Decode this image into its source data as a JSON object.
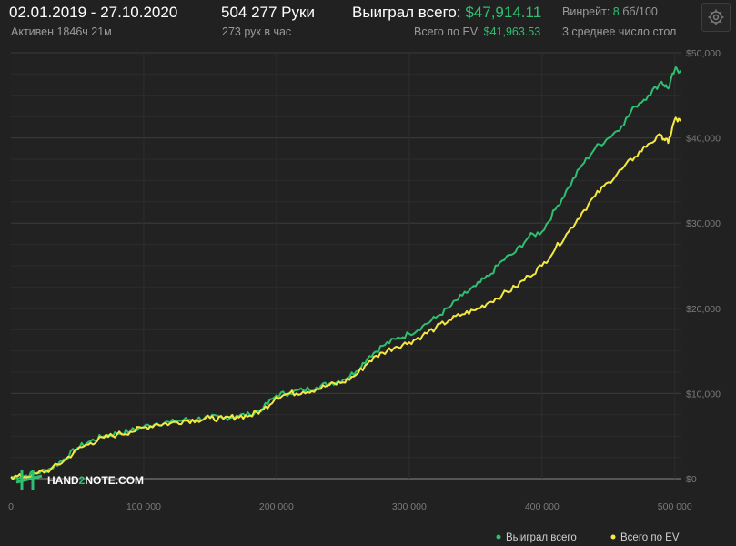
{
  "header": {
    "date_range": "02.01.2019 - 27.10.2020",
    "active_time": "Активен 1846ч 21м",
    "hands": "504 277 Руки",
    "hands_per_hour": "273 рук в час",
    "won_total_label": "Выиграл всего:",
    "won_total_value": "$47,914.11",
    "ev_total_label": "Всего по EV:",
    "ev_total_value": "$41,963.53",
    "winrate_label": "Винрейт:",
    "winrate_value": "8",
    "winrate_unit": "бб/100",
    "avg_tables": "3 среднее число стол"
  },
  "logo": {
    "text_a": "HAND",
    "text_2": "2",
    "text_b": "NOTE.COM"
  },
  "colors": {
    "won": "#2fbf71",
    "ev": "#f4e842",
    "background": "#212121",
    "grid": "#3a3a3a"
  },
  "icons": {
    "settings": "gear-icon"
  },
  "chart_data": {
    "type": "line",
    "title": "",
    "xlabel": "",
    "ylabel": "",
    "xlim": [
      0,
      504277
    ],
    "ylim": [
      0,
      50000
    ],
    "x_ticks": [
      0,
      100000,
      200000,
      300000,
      400000,
      500000
    ],
    "x_tick_labels": [
      "0",
      "100 000",
      "200 000",
      "300 000",
      "400 000",
      "500 000"
    ],
    "y_ticks": [
      0,
      10000,
      20000,
      30000,
      40000,
      50000
    ],
    "y_tick_labels": [
      "$0",
      "$10,000",
      "$20,000",
      "$30,000",
      "$40,000",
      "$50,000"
    ],
    "grid": true,
    "legend_position": "bottom-right",
    "series": [
      {
        "name": "Выиграл всего",
        "color": "#2fbf71",
        "x": [
          0,
          10000,
          20000,
          30000,
          40000,
          50000,
          60000,
          70000,
          80000,
          90000,
          100000,
          110000,
          120000,
          130000,
          140000,
          150000,
          160000,
          170000,
          180000,
          190000,
          200000,
          210000,
          220000,
          230000,
          240000,
          250000,
          260000,
          270000,
          280000,
          290000,
          300000,
          310000,
          320000,
          330000,
          340000,
          350000,
          360000,
          370000,
          380000,
          390000,
          400000,
          410000,
          420000,
          430000,
          440000,
          450000,
          460000,
          470000,
          480000,
          490000,
          495000,
          500000,
          504277
        ],
        "y": [
          200,
          300,
          700,
          1200,
          2300,
          3600,
          4400,
          5000,
          5300,
          5600,
          6100,
          6500,
          6600,
          6900,
          7000,
          7200,
          7100,
          7400,
          7500,
          8300,
          9800,
          10100,
          10400,
          10700,
          11200,
          11600,
          12600,
          14400,
          15600,
          16400,
          17000,
          17900,
          18900,
          20100,
          21500,
          22600,
          23800,
          25600,
          26600,
          28400,
          29000,
          31600,
          34200,
          36800,
          38800,
          40000,
          41400,
          43700,
          45000,
          46600,
          45800,
          48000,
          47914
        ]
      },
      {
        "name": "Всего по EV",
        "color": "#f4e842",
        "x": [
          0,
          10000,
          20000,
          30000,
          40000,
          50000,
          60000,
          70000,
          80000,
          90000,
          100000,
          110000,
          120000,
          130000,
          140000,
          150000,
          160000,
          170000,
          180000,
          190000,
          200000,
          210000,
          220000,
          230000,
          240000,
          250000,
          260000,
          270000,
          280000,
          290000,
          300000,
          310000,
          320000,
          330000,
          340000,
          350000,
          360000,
          370000,
          380000,
          390000,
          400000,
          410000,
          420000,
          430000,
          440000,
          450000,
          460000,
          470000,
          480000,
          490000,
          495000,
          500000,
          504277
        ],
        "y": [
          200,
          200,
          600,
          1100,
          2100,
          3400,
          4200,
          4800,
          5200,
          5500,
          6000,
          6400,
          6500,
          6800,
          6900,
          7100,
          7000,
          7300,
          7400,
          8100,
          9600,
          10000,
          10200,
          10500,
          11000,
          11300,
          12200,
          13800,
          14800,
          15500,
          16000,
          16800,
          17700,
          18600,
          19300,
          19800,
          20700,
          21600,
          22500,
          23800,
          25000,
          27000,
          29000,
          31200,
          33200,
          34800,
          36300,
          37800,
          39300,
          40300,
          39400,
          42200,
          41963
        ]
      }
    ]
  }
}
